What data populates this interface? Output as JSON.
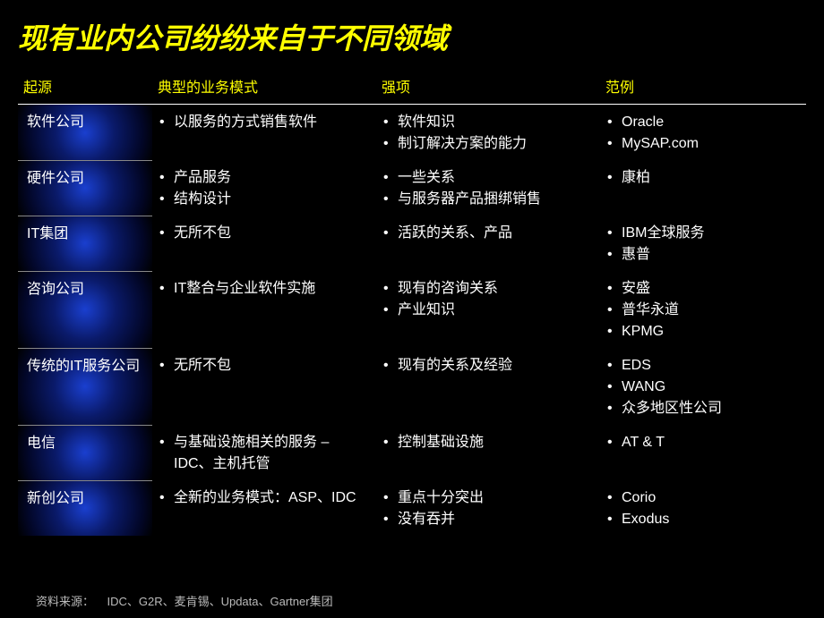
{
  "title": "现有业内公司纷纷来自于不同领域",
  "headers": {
    "origin": "起源",
    "model": "典型的业务模式",
    "strength": "强项",
    "example": "范例"
  },
  "rows": [
    {
      "origin": "软件公司",
      "model": [
        "以服务的方式销售软件"
      ],
      "strength": [
        "软件知识",
        "制订解决方案的能力"
      ],
      "example": [
        "Oracle",
        "MySAP.com"
      ]
    },
    {
      "origin": "硬件公司",
      "model": [
        "产品服务",
        "结构设计"
      ],
      "strength": [
        "一些关系",
        "与服务器产品捆绑销售"
      ],
      "example": [
        "康柏"
      ]
    },
    {
      "origin": "IT集团",
      "model": [
        "无所不包"
      ],
      "strength": [
        "活跃的关系、产品"
      ],
      "example": [
        "IBM全球服务",
        "惠普"
      ]
    },
    {
      "origin": "咨询公司",
      "model": [
        "IT整合与企业软件实施"
      ],
      "strength": [
        "现有的咨询关系",
        "产业知识"
      ],
      "example": [
        "安盛",
        "普华永道",
        "KPMG"
      ]
    },
    {
      "origin": "传统的IT服务公司",
      "model": [
        "无所不包"
      ],
      "strength": [
        "现有的关系及经验"
      ],
      "example": [
        "EDS",
        "WANG",
        "众多地区性公司"
      ]
    },
    {
      "origin": "电信",
      "model": [
        "与基础设施相关的服务 – IDC、主机托管"
      ],
      "strength": [
        "控制基础设施"
      ],
      "example": [
        "AT & T"
      ]
    },
    {
      "origin": "新创公司",
      "model": [
        "全新的业务模式：ASP、IDC"
      ],
      "strength": [
        "重点十分突出",
        "没有吞并"
      ],
      "example": [
        "Corio",
        "Exodus"
      ]
    }
  ],
  "source_label": "资料来源：",
  "source_text": "IDC、G2R、麦肯锡、Updata、Gartner集团",
  "colors": {
    "background": "#000000",
    "title": "#ffff00",
    "header_text": "#ffff00",
    "body_text": "#ffffff",
    "divider": "#888888",
    "origin_gradient_center": "#1a3fcf",
    "origin_gradient_edge": "#000000"
  }
}
